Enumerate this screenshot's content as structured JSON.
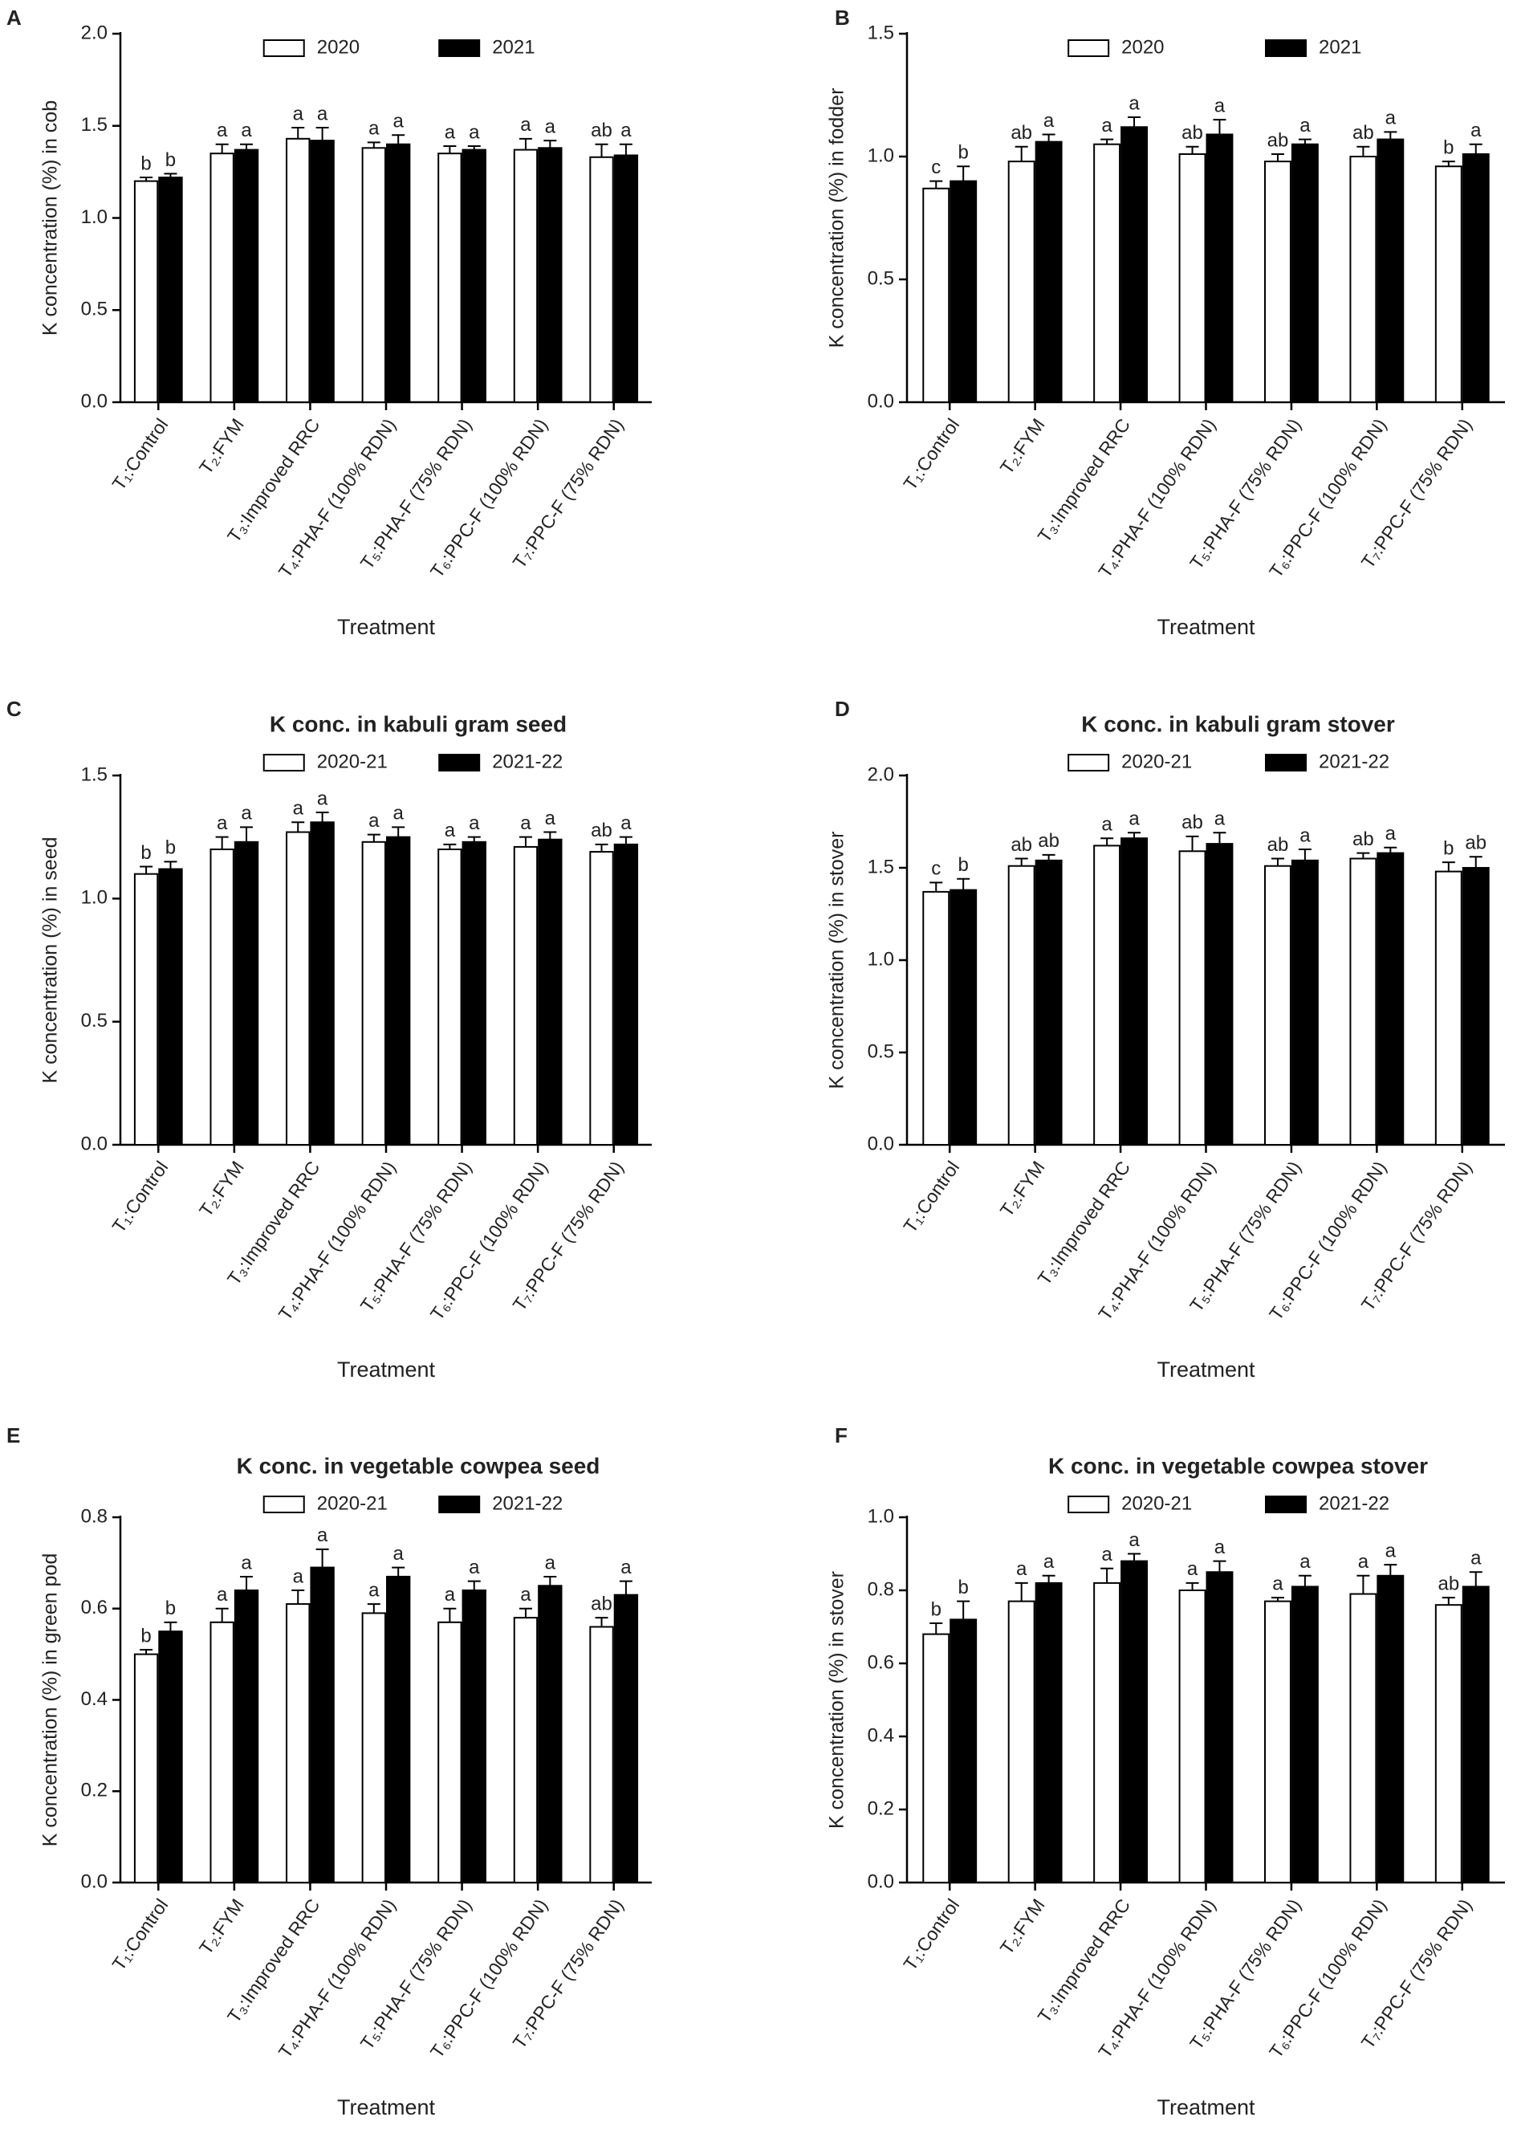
{
  "chart_data": [
    {
      "type": "bar",
      "label": "A",
      "xlabel": "Treatment",
      "ylabel": "K concentration (%) in cob",
      "categories": [
        "T₁:Control",
        "T₂:FYM",
        "T₃:Improved RRC",
        "T₄:PHA-F (100% RDN)",
        "T₅:PHA-F (75% RDN)",
        "T₆:PPC-F (100% RDN)",
        "T₇:PPC-F (75% RDN)"
      ],
      "series": [
        {
          "name": "2020",
          "color": "#ffffff",
          "values": [
            1.2,
            1.35,
            1.43,
            1.38,
            1.35,
            1.37,
            1.33
          ],
          "errors": [
            0.02,
            0.05,
            0.06,
            0.03,
            0.04,
            0.06,
            0.07
          ],
          "letters": [
            "b",
            "a",
            "a",
            "a",
            "a",
            "a",
            "ab"
          ]
        },
        {
          "name": "2021",
          "color": "#000000",
          "values": [
            1.22,
            1.37,
            1.42,
            1.4,
            1.37,
            1.38,
            1.34
          ],
          "errors": [
            0.02,
            0.03,
            0.07,
            0.05,
            0.02,
            0.04,
            0.06
          ],
          "letters": [
            "b",
            "a",
            "a",
            "a",
            "a",
            "a",
            "a"
          ]
        }
      ],
      "ylim": [
        0,
        2
      ],
      "yticks": [
        {
          "value": 0,
          "label": "0.0"
        },
        0.5,
        {
          "value": 1,
          "label": "1.0"
        },
        1.5,
        {
          "value": 2,
          "label": "2.0"
        }
      ],
      "legend": "top"
    },
    {
      "type": "bar",
      "label": "B",
      "xlabel": "Treatment",
      "ylabel": "K concentration (%) in fodder",
      "categories": [
        "T₁:Control",
        "T₂:FYM",
        "T₃:Improved RRC",
        "T₄:PHA-F (100% RDN)",
        "T₅:PHA-F (75% RDN)",
        "T₆:PPC-F (100% RDN)",
        "T₇:PPC-F (75% RDN)"
      ],
      "series": [
        {
          "name": "2020",
          "color": "#ffffff",
          "values": [
            0.87,
            0.98,
            1.05,
            1.01,
            0.98,
            1.0,
            0.96
          ],
          "errors": [
            0.03,
            0.06,
            0.02,
            0.03,
            0.03,
            0.04,
            0.02
          ],
          "letters": [
            "c",
            "ab",
            "a",
            "ab",
            "ab",
            "ab",
            "b"
          ]
        },
        {
          "name": "2021",
          "color": "#000000",
          "values": [
            0.9,
            1.06,
            1.12,
            1.09,
            1.05,
            1.07,
            1.01
          ],
          "errors": [
            0.06,
            0.03,
            0.04,
            0.06,
            0.02,
            0.03,
            0.04
          ],
          "letters": [
            "b",
            "a",
            "a",
            "a",
            "a",
            "a",
            "a"
          ]
        }
      ],
      "ylim": [
        0,
        1.5
      ],
      "yticks": [
        {
          "value": 0,
          "label": "0.0"
        },
        0.5,
        {
          "value": 1,
          "label": "1.0"
        },
        1.5
      ],
      "legend": "top"
    },
    {
      "type": "bar",
      "label": "C",
      "title": "K conc. in kabuli gram seed",
      "xlabel": "Treatment",
      "ylabel": "K concentration (%) in seed",
      "categories": [
        "T₁:Control",
        "T₂:FYM",
        "T₃:Improved RRC",
        "T₄:PHA-F (100% RDN)",
        "T₅:PHA-F (75% RDN)",
        "T₆:PPC-F (100% RDN)",
        "T₇:PPC-F (75% RDN)"
      ],
      "series": [
        {
          "name": "2020-21",
          "color": "#ffffff",
          "values": [
            1.1,
            1.2,
            1.27,
            1.23,
            1.2,
            1.21,
            1.19
          ],
          "errors": [
            0.03,
            0.05,
            0.04,
            0.03,
            0.02,
            0.04,
            0.03
          ],
          "letters": [
            "b",
            "a",
            "a",
            "a",
            "a",
            "a",
            "ab"
          ]
        },
        {
          "name": "2021-22",
          "color": "#000000",
          "values": [
            1.12,
            1.23,
            1.31,
            1.25,
            1.23,
            1.24,
            1.22
          ],
          "errors": [
            0.03,
            0.06,
            0.04,
            0.04,
            0.02,
            0.03,
            0.03
          ],
          "letters": [
            "b",
            "a",
            "a",
            "a",
            "a",
            "a",
            "a"
          ]
        }
      ],
      "ylim": [
        0,
        1.5
      ],
      "yticks": [
        {
          "value": 0,
          "label": "0.0"
        },
        0.5,
        {
          "value": 1,
          "label": "1.0"
        },
        1.5
      ],
      "legend": "top"
    },
    {
      "type": "bar",
      "label": "D",
      "title": "K conc. in kabuli gram stover",
      "xlabel": "Treatment",
      "ylabel": "K concentration (%) in stover",
      "categories": [
        "T₁:Control",
        "T₂:FYM",
        "T₃:Improved RRC",
        "T₄:PHA-F (100% RDN)",
        "T₅:PHA-F (75% RDN)",
        "T₆:PPC-F (100% RDN)",
        "T₇:PPC-F (75% RDN)"
      ],
      "series": [
        {
          "name": "2020-21",
          "color": "#ffffff",
          "values": [
            1.37,
            1.51,
            1.62,
            1.59,
            1.51,
            1.55,
            1.48
          ],
          "errors": [
            0.05,
            0.04,
            0.04,
            0.08,
            0.04,
            0.03,
            0.05
          ],
          "letters": [
            "c",
            "ab",
            "a",
            "ab",
            "ab",
            "ab",
            "b"
          ]
        },
        {
          "name": "2021-22",
          "color": "#000000",
          "values": [
            1.38,
            1.54,
            1.66,
            1.63,
            1.54,
            1.58,
            1.5
          ],
          "errors": [
            0.06,
            0.03,
            0.03,
            0.06,
            0.06,
            0.03,
            0.06
          ],
          "letters": [
            "b",
            "ab",
            "a",
            "a",
            "a",
            "a",
            "ab"
          ]
        }
      ],
      "ylim": [
        0,
        2
      ],
      "yticks": [
        {
          "value": 0,
          "label": "0.0"
        },
        0.5,
        {
          "value": 1,
          "label": "1.0"
        },
        1.5,
        {
          "value": 2,
          "label": "2.0"
        }
      ],
      "legend": "top"
    },
    {
      "type": "bar",
      "label": "E",
      "title": "K conc. in vegetable cowpea seed",
      "xlabel": "Treatment",
      "ylabel": "K concentration (%) in green pod",
      "categories": [
        "T₁:Control",
        "T₂:FYM",
        "T₃:Improved RRC",
        "T₄:PHA-F (100% RDN)",
        "T₅:PHA-F (75% RDN)",
        "T₆:PPC-F (100% RDN)",
        "T₇:PPC-F (75% RDN)"
      ],
      "series": [
        {
          "name": "2020-21",
          "color": "#ffffff",
          "values": [
            0.5,
            0.57,
            0.61,
            0.59,
            0.57,
            0.58,
            0.56
          ],
          "errors": [
            0.01,
            0.03,
            0.03,
            0.02,
            0.03,
            0.02,
            0.02
          ],
          "letters": [
            "b",
            "a",
            "a",
            "a",
            "a",
            "a",
            "ab"
          ]
        },
        {
          "name": "2021-22",
          "color": "#000000",
          "values": [
            0.55,
            0.64,
            0.69,
            0.67,
            0.64,
            0.65,
            0.63
          ],
          "errors": [
            0.02,
            0.03,
            0.04,
            0.02,
            0.02,
            0.02,
            0.03
          ],
          "letters": [
            "b",
            "a",
            "a",
            "a",
            "a",
            "a",
            "a"
          ]
        }
      ],
      "ylim": [
        0,
        0.8
      ],
      "yticks": [
        {
          "value": 0,
          "label": "0.0"
        },
        0.2,
        0.4,
        0.6,
        0.8
      ],
      "legend": "top"
    },
    {
      "type": "bar",
      "label": "F",
      "title": "K conc. in vegetable cowpea stover",
      "xlabel": "Treatment",
      "ylabel": "K concentration (%) in stover",
      "categories": [
        "T₁:Control",
        "T₂:FYM",
        "T₃:Improved RRC",
        "T₄:PHA-F (100% RDN)",
        "T₅:PHA-F (75% RDN)",
        "T₆:PPC-F (100% RDN)",
        "T₇:PPC-F (75% RDN)"
      ],
      "series": [
        {
          "name": "2020-21",
          "color": "#ffffff",
          "values": [
            0.68,
            0.77,
            0.82,
            0.8,
            0.77,
            0.79,
            0.76
          ],
          "errors": [
            0.03,
            0.05,
            0.04,
            0.02,
            0.01,
            0.05,
            0.02
          ],
          "letters": [
            "b",
            "a",
            "a",
            "a",
            "a",
            "a",
            "ab"
          ]
        },
        {
          "name": "2021-22",
          "color": "#000000",
          "values": [
            0.72,
            0.82,
            0.88,
            0.85,
            0.81,
            0.84,
            0.81
          ],
          "errors": [
            0.05,
            0.02,
            0.02,
            0.03,
            0.03,
            0.03,
            0.04
          ],
          "letters": [
            "b",
            "a",
            "a",
            "a",
            "a",
            "a",
            "a"
          ]
        }
      ],
      "ylim": [
        0,
        1
      ],
      "yticks": [
        {
          "value": 0,
          "label": "0.0"
        },
        0.2,
        0.4,
        0.6,
        0.8,
        {
          "value": 1,
          "label": "1.0"
        }
      ],
      "legend": "top"
    }
  ]
}
